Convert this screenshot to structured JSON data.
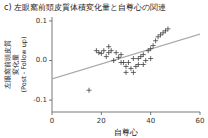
{
  "chart_data": {
    "type": "scatter",
    "title": "c) 左眼窩前頭皮質体積変化量と自尊心の関連",
    "xlabel": "自尊心",
    "ylabel": [
      "左眼窩前頭皮質",
      "変化量",
      "(Post - Follow up)"
    ],
    "xlim": [
      0,
      60
    ],
    "ylim": [
      -0.13,
      0.11
    ],
    "xticks": [
      0,
      20,
      40,
      60
    ],
    "yticks": [
      -0.1,
      {
        "value": 0,
        "label": "0.0"
      },
      0.1
    ],
    "grid": false,
    "series": [
      {
        "type": "scatter",
        "color": "#444444",
        "marker": "plus",
        "x": [
          15,
          18,
          19,
          20,
          21,
          22,
          23,
          23,
          24,
          25,
          26,
          27,
          28,
          28,
          29,
          30,
          30,
          31,
          32,
          33,
          33,
          34,
          35,
          35,
          36,
          37,
          37,
          38,
          39,
          40,
          40,
          41,
          42,
          43,
          44,
          45,
          46,
          47
        ],
        "values": [
          -0.075,
          0.025,
          0.02,
          0.018,
          0.025,
          0.01,
          0.035,
          0.02,
          0.025,
          0.0,
          0.02,
          0.008,
          -0.005,
          0.015,
          -0.005,
          -0.015,
          -0.03,
          -0.005,
          -0.02,
          -0.03,
          0.005,
          -0.015,
          0.005,
          -0.01,
          0.01,
          0.015,
          -0.01,
          0.0,
          0.025,
          0.03,
          0.005,
          0.038,
          0.05,
          0.06,
          0.065,
          0.07,
          0.075,
          0.08
        ]
      },
      {
        "type": "line",
        "color": "#aaaaaa",
        "x": [
          0,
          60
        ],
        "values": [
          -0.046367,
          0.06692
        ]
      }
    ]
  }
}
